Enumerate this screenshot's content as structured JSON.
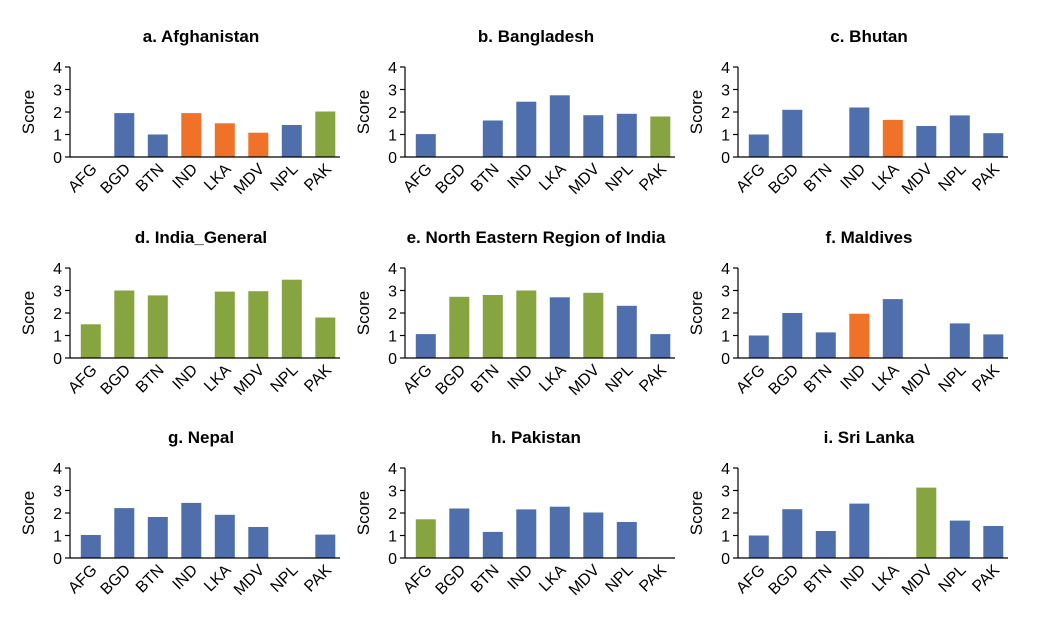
{
  "colors": {
    "blue": "#4e6fac",
    "orange": "#f07228",
    "green": "#86a440"
  },
  "chart_data": [
    {
      "type": "bar",
      "title": "a. Afghanistan",
      "ylabel": "Score",
      "xlabel": "",
      "ylim": [
        0,
        4
      ],
      "yticks": [
        "0",
        "1",
        "2",
        "3",
        "4"
      ],
      "categories": [
        "AFG",
        "BGD",
        "BTN",
        "IND",
        "LKA",
        "MDV",
        "NPL",
        "PAK"
      ],
      "values": [
        null,
        1.95,
        1.0,
        1.95,
        1.5,
        1.08,
        1.42,
        2.02
      ],
      "colors": [
        "blue",
        "blue",
        "blue",
        "orange",
        "orange",
        "orange",
        "blue",
        "green"
      ]
    },
    {
      "type": "bar",
      "title": "b. Bangladesh",
      "ylabel": "Score",
      "xlabel": "",
      "ylim": [
        0,
        4
      ],
      "yticks": [
        "0",
        "1",
        "2",
        "3",
        "4"
      ],
      "categories": [
        "AFG",
        "BGD",
        "BTN",
        "IND",
        "LKA",
        "MDV",
        "NPL",
        "PAK"
      ],
      "values": [
        1.02,
        null,
        1.62,
        2.46,
        2.74,
        1.86,
        1.92,
        1.8
      ],
      "colors": [
        "blue",
        "blue",
        "blue",
        "blue",
        "blue",
        "blue",
        "blue",
        "green"
      ]
    },
    {
      "type": "bar",
      "title": "c. Bhutan",
      "ylabel": "Score",
      "xlabel": "",
      "ylim": [
        0,
        4
      ],
      "yticks": [
        "0",
        "1",
        "2",
        "3",
        "4"
      ],
      "categories": [
        "AFG",
        "BGD",
        "BTN",
        "IND",
        "LKA",
        "MDV",
        "NPL",
        "PAK"
      ],
      "values": [
        1.0,
        2.1,
        null,
        2.2,
        1.65,
        1.38,
        1.85,
        1.06
      ],
      "colors": [
        "blue",
        "blue",
        "blue",
        "blue",
        "orange",
        "blue",
        "blue",
        "blue"
      ]
    },
    {
      "type": "bar",
      "title": "d. India_General",
      "ylabel": "Score",
      "xlabel": "",
      "ylim": [
        0,
        4
      ],
      "yticks": [
        "0",
        "1",
        "2",
        "3",
        "4"
      ],
      "categories": [
        "AFG",
        "BGD",
        "BTN",
        "IND",
        "LKA",
        "MDV",
        "NPL",
        "PAK"
      ],
      "values": [
        1.5,
        3.0,
        2.78,
        null,
        2.95,
        2.97,
        3.48,
        1.8
      ],
      "colors": [
        "green",
        "green",
        "green",
        "green",
        "green",
        "green",
        "green",
        "green"
      ]
    },
    {
      "type": "bar",
      "title": "e. North Eastern Region of India",
      "ylabel": "Score",
      "xlabel": "",
      "ylim": [
        0,
        4
      ],
      "yticks": [
        "0",
        "1",
        "2",
        "3",
        "4"
      ],
      "categories": [
        "AFG",
        "BGD",
        "BTN",
        "IND",
        "LKA",
        "MDV",
        "NPL",
        "PAK"
      ],
      "values": [
        1.06,
        2.72,
        2.8,
        3.0,
        2.7,
        2.9,
        2.32,
        1.06
      ],
      "colors": [
        "blue",
        "green",
        "green",
        "green",
        "blue",
        "green",
        "blue",
        "blue"
      ]
    },
    {
      "type": "bar",
      "title": "f. Maldives",
      "ylabel": "Score",
      "xlabel": "",
      "ylim": [
        0,
        4
      ],
      "yticks": [
        "0",
        "1",
        "2",
        "3",
        "4"
      ],
      "categories": [
        "AFG",
        "BGD",
        "BTN",
        "IND",
        "LKA",
        "MDV",
        "NPL",
        "PAK"
      ],
      "values": [
        1.0,
        2.0,
        1.14,
        1.97,
        2.62,
        null,
        1.54,
        1.05
      ],
      "colors": [
        "blue",
        "blue",
        "blue",
        "orange",
        "blue",
        "blue",
        "blue",
        "blue"
      ]
    },
    {
      "type": "bar",
      "title": "g. Nepal",
      "ylabel": "Score",
      "xlabel": "",
      "ylim": [
        0,
        4
      ],
      "yticks": [
        "0",
        "1",
        "2",
        "3",
        "4"
      ],
      "categories": [
        "AFG",
        "BGD",
        "BTN",
        "IND",
        "LKA",
        "MDV",
        "NPL",
        "PAK"
      ],
      "values": [
        1.02,
        2.22,
        1.82,
        2.45,
        1.92,
        1.38,
        null,
        1.04
      ],
      "colors": [
        "blue",
        "blue",
        "blue",
        "blue",
        "blue",
        "blue",
        "blue",
        "blue"
      ]
    },
    {
      "type": "bar",
      "title": "h. Pakistan",
      "ylabel": "Score",
      "xlabel": "",
      "ylim": [
        0,
        4
      ],
      "yticks": [
        "0",
        "1",
        "2",
        "3",
        "4"
      ],
      "categories": [
        "AFG",
        "BGD",
        "BTN",
        "IND",
        "LKA",
        "MDV",
        "NPL",
        "PAK"
      ],
      "values": [
        1.72,
        2.2,
        1.16,
        2.16,
        2.28,
        2.02,
        1.6,
        null
      ],
      "colors": [
        "green",
        "blue",
        "blue",
        "blue",
        "blue",
        "blue",
        "blue",
        "blue"
      ]
    },
    {
      "type": "bar",
      "title": "i. Sri Lanka",
      "ylabel": "Score",
      "xlabel": "",
      "ylim": [
        0,
        4
      ],
      "yticks": [
        "0",
        "1",
        "2",
        "3",
        "4"
      ],
      "categories": [
        "AFG",
        "BGD",
        "BTN",
        "IND",
        "LKA",
        "MDV",
        "NPL",
        "PAK"
      ],
      "values": [
        1.0,
        2.17,
        1.2,
        2.42,
        null,
        3.13,
        1.66,
        1.42
      ],
      "colors": [
        "blue",
        "blue",
        "blue",
        "blue",
        "blue",
        "green",
        "blue",
        "blue"
      ]
    }
  ]
}
